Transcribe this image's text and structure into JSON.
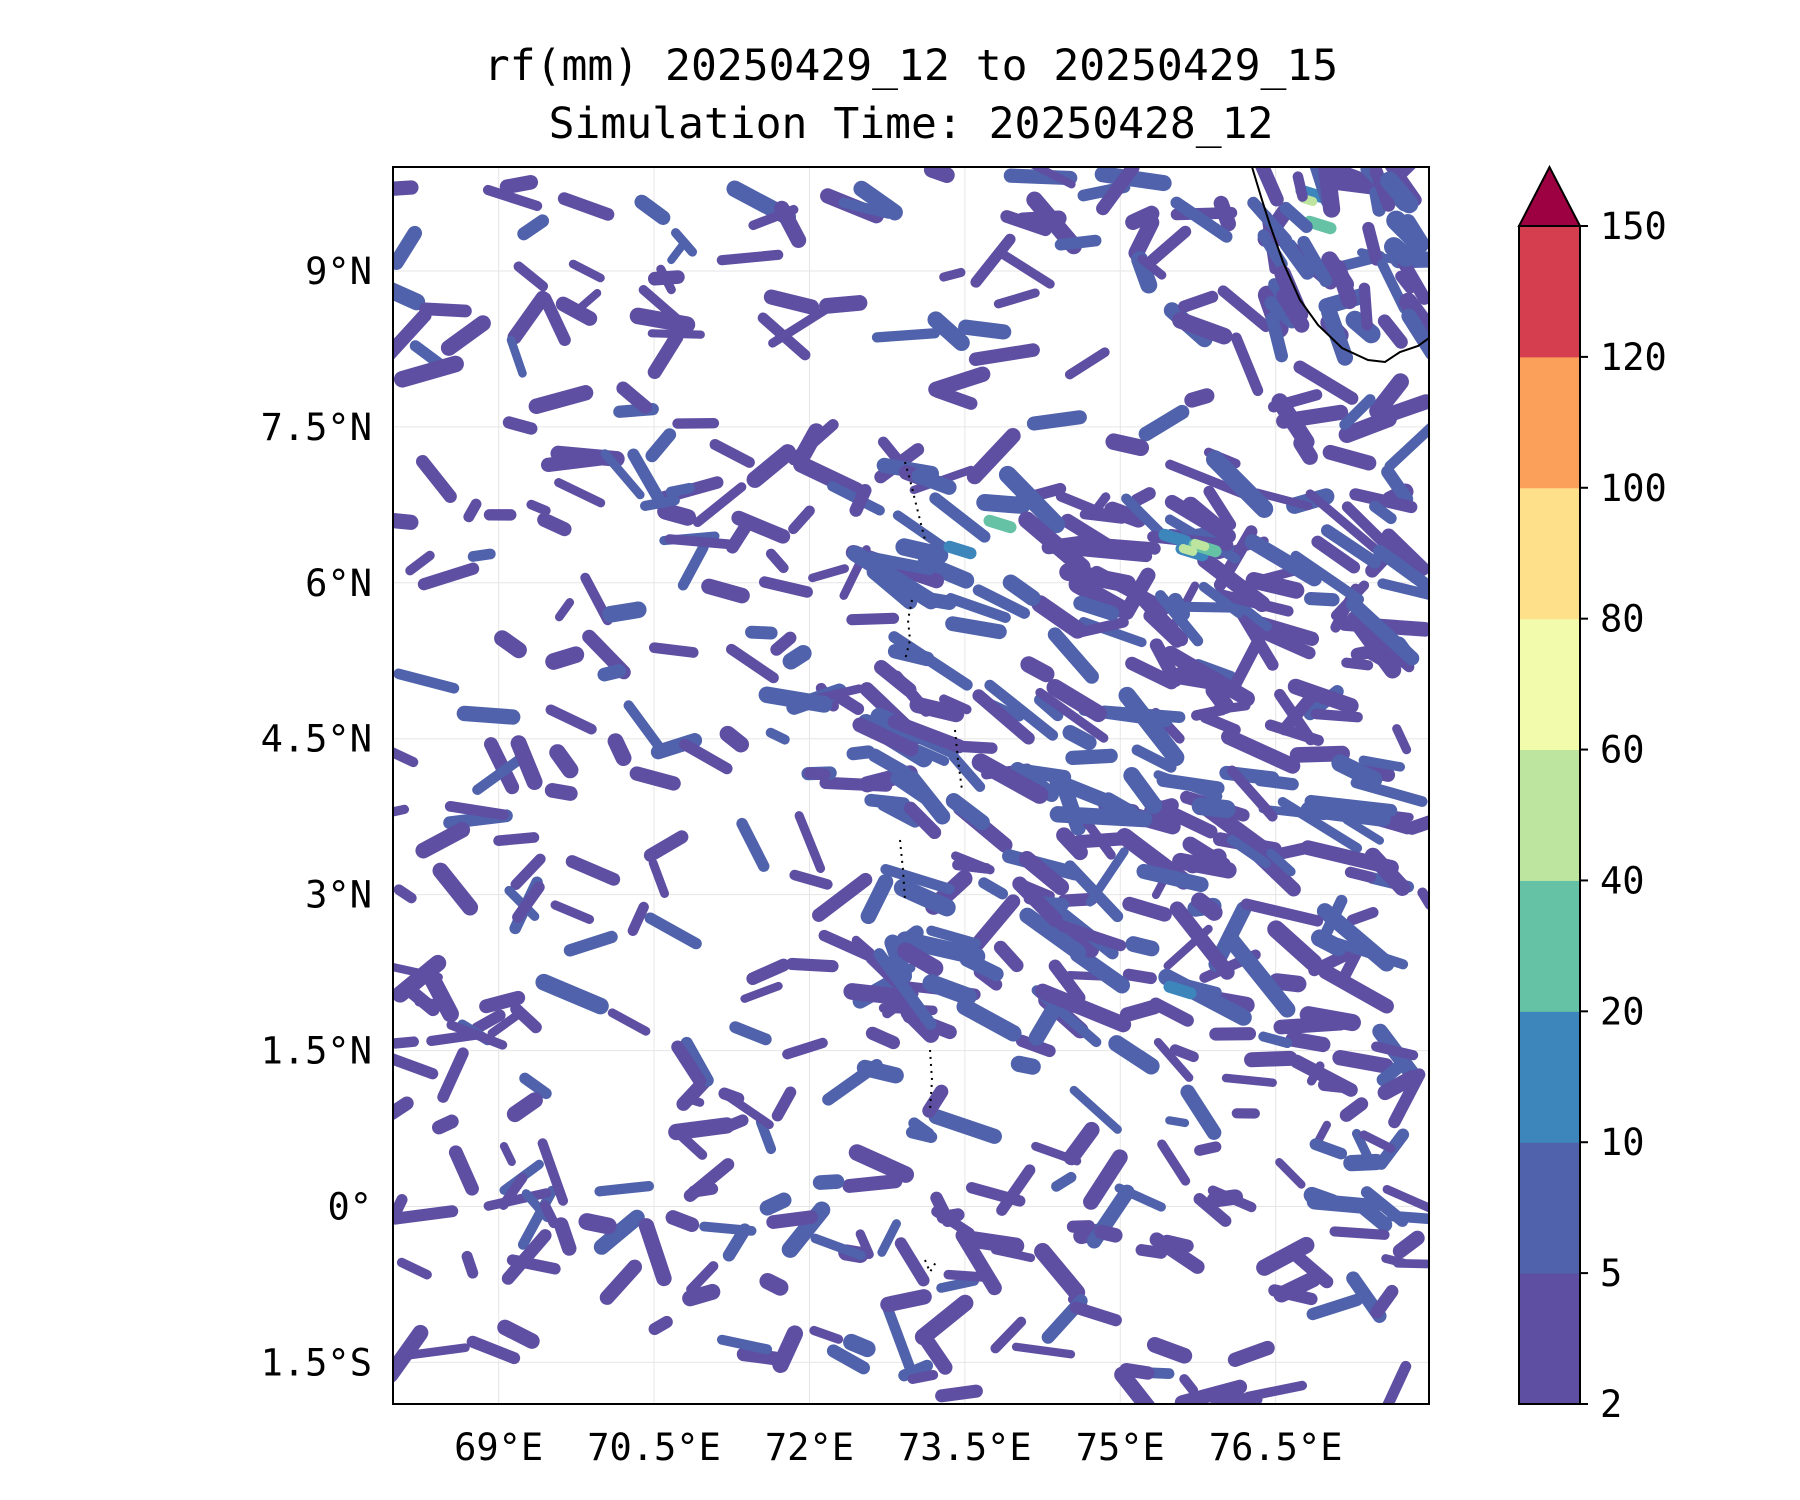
{
  "title": {
    "line1": "rf(mm) 20250429_12 to 20250429_15",
    "line2": "Simulation Time: 20250428_12"
  },
  "map": {
    "variable": "rf(mm)",
    "extent": {
      "lon_min": 67.98,
      "lon_max": 77.98,
      "lat_min": -1.9,
      "lat_max": 10.0
    },
    "lat_ticks": [
      {
        "value": 9.0,
        "label": "9°N"
      },
      {
        "value": 7.5,
        "label": "7.5°N"
      },
      {
        "value": 6.0,
        "label": "6°N"
      },
      {
        "value": 4.5,
        "label": "4.5°N"
      },
      {
        "value": 3.0,
        "label": "3°N"
      },
      {
        "value": 1.5,
        "label": "1.5°N"
      },
      {
        "value": 0.0,
        "label": "0°"
      },
      {
        "value": -1.5,
        "label": "1.5°S"
      }
    ],
    "lon_ticks": [
      {
        "value": 69.0,
        "label": "69°E"
      },
      {
        "value": 70.5,
        "label": "70.5°E"
      },
      {
        "value": 72.0,
        "label": "72°E"
      },
      {
        "value": 73.5,
        "label": "73.5°E"
      },
      {
        "value": 75.0,
        "label": "75°E"
      },
      {
        "value": 76.5,
        "label": "76.5°E"
      }
    ],
    "gridlines": true,
    "colors": {
      "land_outline": "#000000",
      "grid": "#e6e6e6"
    }
  },
  "colorbar": {
    "levels": [
      "2",
      "5",
      "10",
      "20",
      "40",
      "60",
      "80",
      "100",
      "120",
      "150"
    ],
    "colors": [
      "#5e4fa2",
      "#4f62ab",
      "#3c86bc",
      "#65c2a5",
      "#bde5a0",
      "#f2faac",
      "#fee08b",
      "#fba05b",
      "#d53e4f"
    ],
    "extend_color": "#9e0142",
    "extend": "max"
  }
}
